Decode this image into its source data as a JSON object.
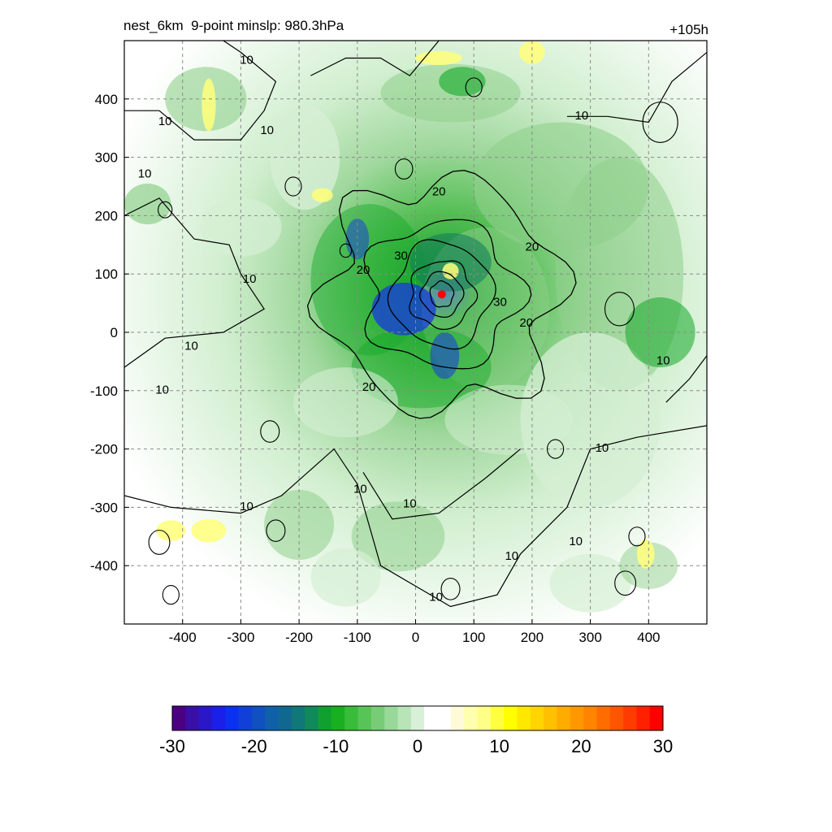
{
  "chart_data": {
    "type": "heatmap",
    "title_left": "nest_6km  9-point minslp: 980.3hPa",
    "title_right": "+105h",
    "x_ticks": [
      -400,
      -300,
      -200,
      -100,
      0,
      100,
      200,
      300,
      400
    ],
    "y_ticks": [
      400,
      300,
      200,
      100,
      0,
      -100,
      -200,
      -300,
      -400
    ],
    "xlim": [
      -500,
      500
    ],
    "ylim": [
      -500,
      500
    ],
    "grid": true,
    "grid_style": "dashed",
    "storm_center": [
      45,
      65
    ],
    "contour_labels": [
      {
        "text": "10",
        "x": -290,
        "y": 460
      },
      {
        "text": "10",
        "x": -430,
        "y": 355
      },
      {
        "text": "10",
        "x": -255,
        "y": 340
      },
      {
        "text": "10",
        "x": -465,
        "y": 265
      },
      {
        "text": "10",
        "x": -285,
        "y": 85
      },
      {
        "text": "10",
        "x": -385,
        "y": -30
      },
      {
        "text": "10",
        "x": -435,
        "y": -105
      },
      {
        "text": "10",
        "x": -290,
        "y": -305
      },
      {
        "text": "10",
        "x": -95,
        "y": -275
      },
      {
        "text": "10",
        "x": -10,
        "y": -300
      },
      {
        "text": "10",
        "x": 35,
        "y": -460
      },
      {
        "text": "10",
        "x": 165,
        "y": -390
      },
      {
        "text": "10",
        "x": 275,
        "y": -365
      },
      {
        "text": "10",
        "x": 320,
        "y": -205
      },
      {
        "text": "10",
        "x": 285,
        "y": 365
      },
      {
        "text": "10",
        "x": 425,
        "y": -55
      },
      {
        "text": "20",
        "x": 40,
        "y": 235
      },
      {
        "text": "20",
        "x": 200,
        "y": 140
      },
      {
        "text": "20",
        "x": -90,
        "y": 100
      },
      {
        "text": "20",
        "x": 190,
        "y": 10
      },
      {
        "text": "20",
        "x": -80,
        "y": -100
      },
      {
        "text": "30",
        "x": -25,
        "y": 125
      },
      {
        "text": "30",
        "x": 145,
        "y": 45
      }
    ],
    "colorbar": {
      "ticks": [
        -30,
        -20,
        -10,
        0,
        10,
        20,
        30
      ],
      "range": [
        -30,
        30
      ],
      "colors": [
        "#4b0082",
        "#3a0fa8",
        "#2a18c8",
        "#1a20e8",
        "#0a30f0",
        "#1040d8",
        "#1050c0",
        "#1060a8",
        "#106890",
        "#107878",
        "#108a5a",
        "#10a030",
        "#18b020",
        "#38bc3a",
        "#58c458",
        "#78cc78",
        "#98d898",
        "#b8e4b8",
        "#d8f0d8",
        "#ffffff",
        "#ffffff",
        "#fffbd8",
        "#ffffb0",
        "#ffff88",
        "#ffff40",
        "#ffff00",
        "#ffe800",
        "#ffd400",
        "#ffc000",
        "#ffac00",
        "#ff9800",
        "#ff8400",
        "#ff6c00",
        "#ff5400",
        "#ff3c00",
        "#ff2000",
        "#ff0000"
      ]
    },
    "colors": {
      "green_light": "#d6efd4",
      "green_mid": "#8fd08c",
      "green_dark": "#14a828",
      "teal": "#117a5a",
      "blue": "#1838e0",
      "yellow": "#ffff7a",
      "center_marker": "#ff0000"
    }
  }
}
